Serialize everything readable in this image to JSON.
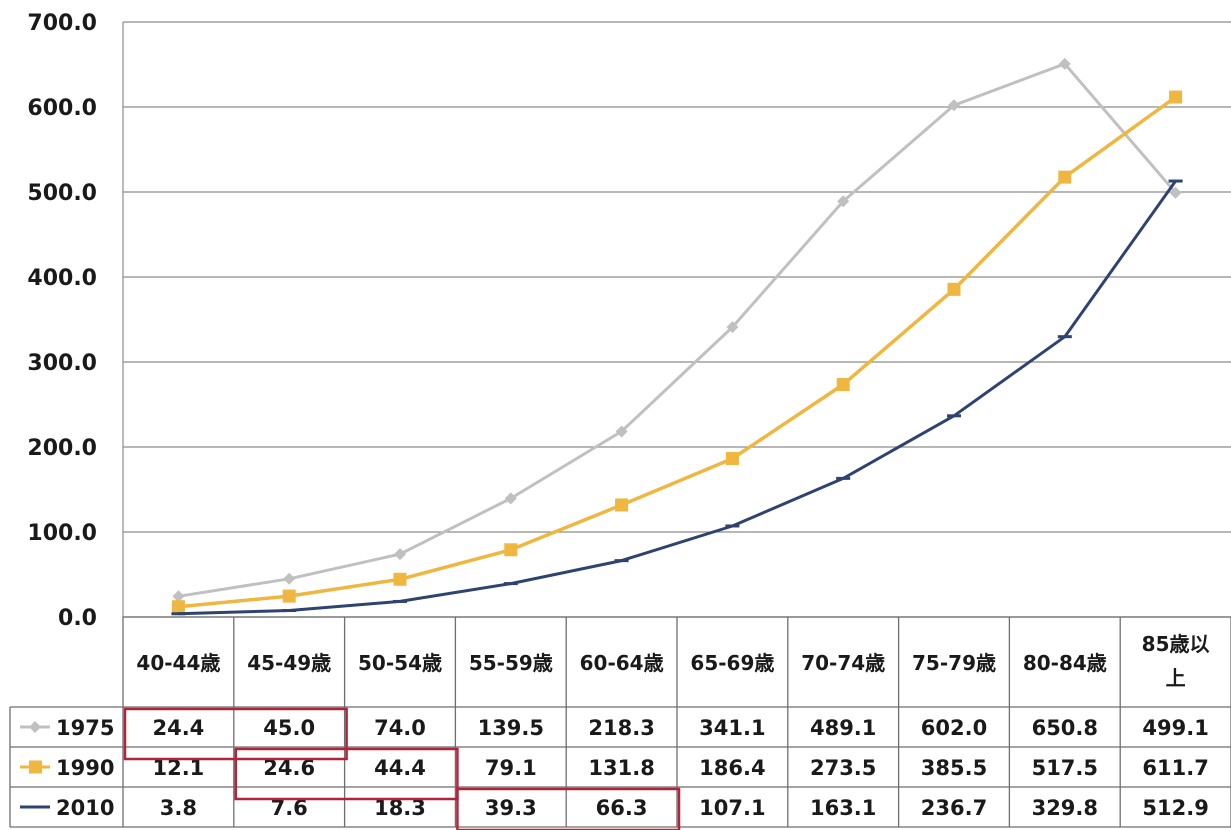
{
  "chart_data": {
    "type": "line",
    "title": "",
    "xlabel": "",
    "ylabel": "",
    "ylim": [
      0,
      700
    ],
    "y_ticks": [
      "0.0",
      "100.0",
      "200.0",
      "300.0",
      "400.0",
      "500.0",
      "600.0",
      "700.0"
    ],
    "grid": "horizontal",
    "legend_position": "data-table-left",
    "categories": [
      "40-44歳",
      "45-49歳",
      "50-54歳",
      "55-59歳",
      "60-64歳",
      "65-69歳",
      "70-74歳",
      "75-79歳",
      "80-84歳",
      "85歳以上"
    ],
    "category_display": [
      [
        "40-44歳"
      ],
      [
        "45-49歳"
      ],
      [
        "50-54歳"
      ],
      [
        "55-59歳"
      ],
      [
        "60-64歳"
      ],
      [
        "65-69歳"
      ],
      [
        "70-74歳"
      ],
      [
        "75-79歳"
      ],
      [
        "80-84歳"
      ],
      [
        "85歳以",
        "上"
      ]
    ],
    "series": [
      {
        "name": "1975",
        "color": "#c0c0c0",
        "marker": "diamond",
        "values": [
          24.4,
          45.0,
          74.0,
          139.5,
          218.3,
          341.1,
          489.1,
          602.0,
          650.8,
          499.1
        ],
        "labels": [
          "24.4",
          "45.0",
          "74.0",
          "139.5",
          "218.3",
          "341.1",
          "489.1",
          "602.0",
          "650.8",
          "499.1"
        ]
      },
      {
        "name": "1990",
        "color": "#efb640",
        "marker": "square",
        "values": [
          12.1,
          24.6,
          44.4,
          79.1,
          131.8,
          186.4,
          273.5,
          385.5,
          517.5,
          611.7
        ],
        "labels": [
          "12.1",
          "24.6",
          "44.4",
          "79.1",
          "131.8",
          "186.4",
          "273.5",
          "385.5",
          "517.5",
          "611.7"
        ]
      },
      {
        "name": "2010",
        "color": "#2e4370",
        "marker": "dash",
        "values": [
          3.8,
          7.6,
          18.3,
          39.3,
          66.3,
          107.1,
          163.1,
          236.7,
          329.8,
          512.9
        ],
        "labels": [
          "3.8",
          "7.6",
          "18.3",
          "39.3",
          "66.3",
          "107.1",
          "163.1",
          "236.7",
          "329.8",
          "512.9"
        ]
      }
    ],
    "highlights": [
      {
        "series": 0,
        "from": 0,
        "to": 1,
        "color": "#b0243c"
      },
      {
        "series": 1,
        "from": 1,
        "to": 2,
        "color": "#b0243c"
      },
      {
        "series": 2,
        "from": 3,
        "to": 4,
        "color": "#b0243c"
      }
    ]
  }
}
